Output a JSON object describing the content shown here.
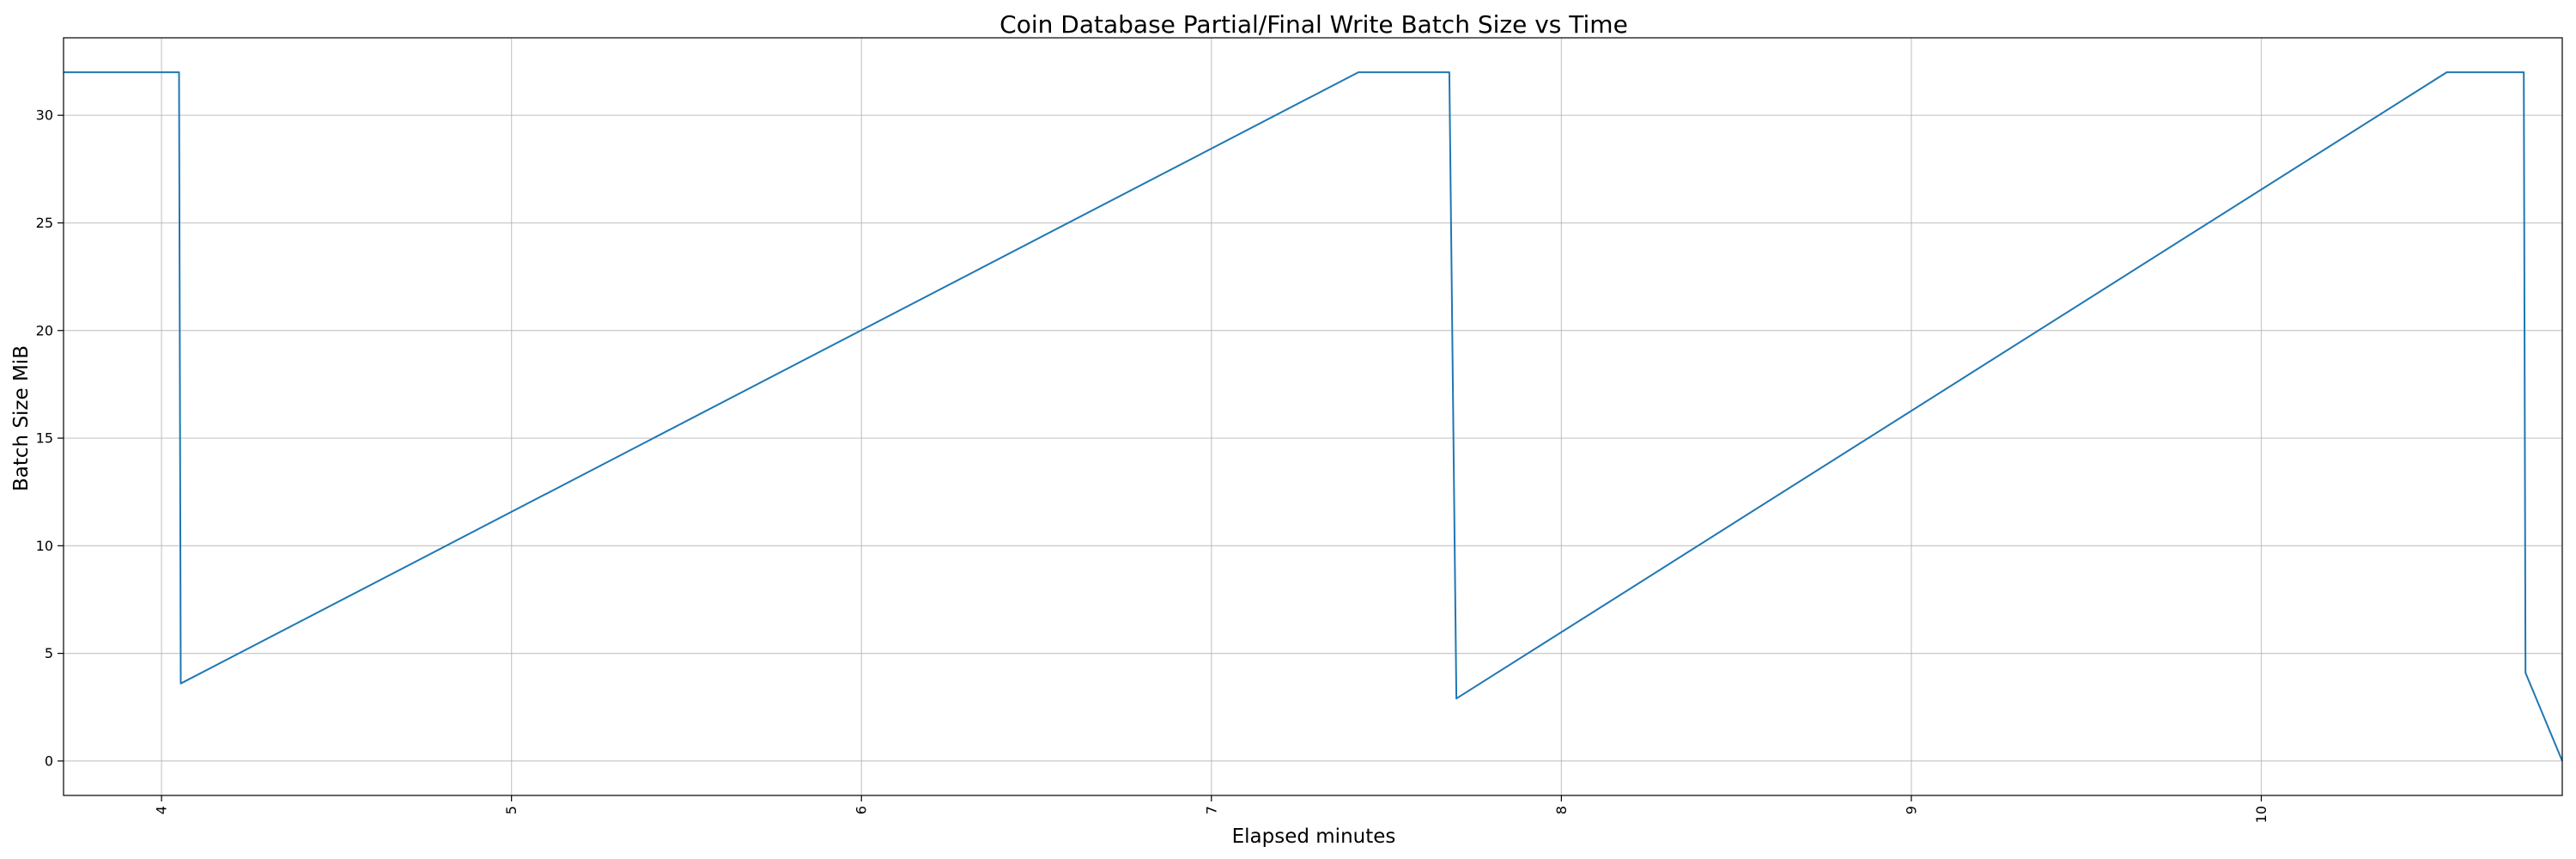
{
  "chart_data": {
    "type": "line",
    "title": "Coin Database Partial/Final Write Batch Size vs Time",
    "xlabel": "Elapsed minutes",
    "ylabel": "Batch Size MiB",
    "xlim": [
      3.72,
      10.86
    ],
    "ylim": [
      -1.6,
      33.6
    ],
    "x_ticks": [
      4,
      5,
      6,
      7,
      8,
      9,
      10
    ],
    "y_ticks": [
      0,
      5,
      10,
      15,
      20,
      25,
      30
    ],
    "x_tick_labels": [
      "4",
      "5",
      "6",
      "7",
      "8",
      "9",
      "10"
    ],
    "y_tick_labels": [
      "0",
      "5",
      "10",
      "15",
      "20",
      "25",
      "30"
    ],
    "grid": true,
    "series": [
      {
        "color": "#1f77b4",
        "x": [
          3.72,
          4.05,
          4.055,
          7.42,
          7.68,
          7.7,
          10.53,
          10.75,
          10.755,
          10.86
        ],
        "y": [
          32.0,
          32.0,
          3.6,
          32.0,
          32.0,
          2.9,
          32.0,
          32.0,
          4.1,
          0.0
        ]
      }
    ]
  }
}
